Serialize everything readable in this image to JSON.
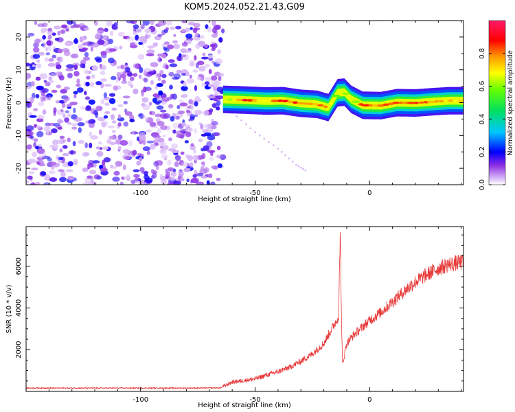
{
  "page": {
    "title": "KOM5.2024.052.21.43.G09"
  },
  "chart_data": [
    {
      "type": "heatmap",
      "title": "",
      "xlabel": "Height of straight line (km)",
      "ylabel": "Frequency (Hz)",
      "xlim": [
        -150,
        41
      ],
      "ylim": [
        -25,
        25
      ],
      "xticks": [
        -100,
        -50,
        0
      ],
      "yticks": [
        -20,
        -10,
        0,
        10,
        20
      ],
      "colorbar": {
        "label": "Normalized spectral amplitude",
        "range": [
          0,
          1
        ],
        "ticks": [
          0.0,
          0.2,
          0.4,
          0.6,
          0.8
        ]
      },
      "noise_region": {
        "x_range": [
          -150,
          -64
        ],
        "y_range": [
          -25,
          25
        ],
        "amplitude_range": [
          0.0,
          0.2
        ]
      },
      "signal_trace": [
        {
          "x": -64,
          "y": 1.0,
          "amp": 0.45
        },
        {
          "x": -55,
          "y": 0.8,
          "amp": 0.9
        },
        {
          "x": -45,
          "y": 0.5,
          "amp": 0.75
        },
        {
          "x": -38,
          "y": 0.6,
          "amp": 0.9
        },
        {
          "x": -30,
          "y": -0.2,
          "amp": 0.85
        },
        {
          "x": -23,
          "y": -0.5,
          "amp": 0.8
        },
        {
          "x": -18,
          "y": -1.5,
          "amp": 0.75
        },
        {
          "x": -14,
          "y": 3.0,
          "amp": 0.5
        },
        {
          "x": -11,
          "y": 3.2,
          "amp": 0.7
        },
        {
          "x": -8,
          "y": 1.0,
          "amp": 0.6
        },
        {
          "x": -3,
          "y": -0.8,
          "amp": 0.85
        },
        {
          "x": 5,
          "y": -0.9,
          "amp": 0.85
        },
        {
          "x": 12,
          "y": 0.0,
          "amp": 0.9
        },
        {
          "x": 20,
          "y": -0.1,
          "amp": 0.9
        },
        {
          "x": 28,
          "y": 0.3,
          "amp": 0.85
        },
        {
          "x": 35,
          "y": 0.6,
          "amp": 0.8
        },
        {
          "x": 41,
          "y": 0.6,
          "amp": 0.8
        }
      ],
      "faint_diagonal": [
        {
          "x": -60,
          "y": -3
        },
        {
          "x": -50,
          "y": -9
        },
        {
          "x": -40,
          "y": -14
        },
        {
          "x": -32,
          "y": -19
        },
        {
          "x": -27,
          "y": -21
        }
      ]
    },
    {
      "type": "line",
      "title": "",
      "xlabel": "Height of straight line (km)",
      "ylabel": "SNR (10 * v/v)",
      "xlim": [
        -150,
        41
      ],
      "ylim": [
        0,
        7900
      ],
      "xticks": [
        -100,
        -50,
        0
      ],
      "yticks": [
        2000,
        4000,
        6000
      ],
      "color": "#e83a3a",
      "series": [
        {
          "points": [
            [
              -150,
              160
            ],
            [
              -130,
              160
            ],
            [
              -110,
              160
            ],
            [
              -90,
              160
            ],
            [
              -75,
              160
            ],
            [
              -65,
              170
            ],
            [
              -60,
              450
            ],
            [
              -55,
              520
            ],
            [
              -50,
              600
            ],
            [
              -45,
              780
            ],
            [
              -40,
              950
            ],
            [
              -35,
              1150
            ],
            [
              -30,
              1450
            ],
            [
              -25,
              1800
            ],
            [
              -20,
              2300
            ],
            [
              -17,
              2900
            ],
            [
              -15,
              3300
            ],
            [
              -13.5,
              3600
            ],
            [
              -12.8,
              7900
            ],
            [
              -12.2,
              2900
            ],
            [
              -11.8,
              1300
            ],
            [
              -10,
              2300
            ],
            [
              -7,
              2700
            ],
            [
              -5,
              2900
            ],
            [
              0,
              3400
            ],
            [
              5,
              3800
            ],
            [
              10,
              4300
            ],
            [
              15,
              4800
            ],
            [
              20,
              5250
            ],
            [
              25,
              5600
            ],
            [
              30,
              5900
            ],
            [
              35,
              6100
            ],
            [
              41,
              6200
            ]
          ]
        }
      ]
    }
  ]
}
